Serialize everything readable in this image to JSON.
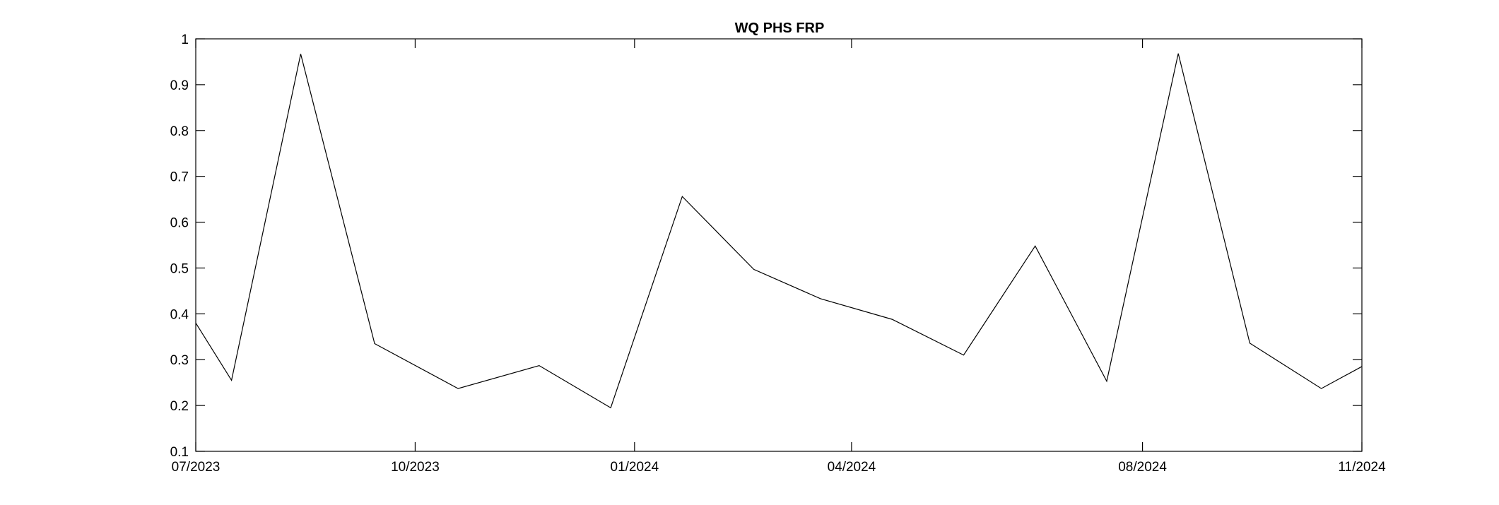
{
  "chart_data": {
    "type": "line",
    "title": "WQ PHS FRP",
    "xlabel": "",
    "ylabel": "",
    "x_axis": {
      "kind": "date",
      "range": [
        "2023-07",
        "2024-11"
      ],
      "ticks": [
        {
          "date": "2023-07",
          "label": "07/2023"
        },
        {
          "date": "2023-10",
          "label": "10/2023"
        },
        {
          "date": "2024-01",
          "label": "01/2024"
        },
        {
          "date": "2024-04",
          "label": "04/2024"
        },
        {
          "date": "2024-08",
          "label": "08/2024"
        },
        {
          "date": "2024-11",
          "label": "11/2024"
        }
      ]
    },
    "y_axis": {
      "range": [
        0.1,
        1
      ],
      "ticks": [
        {
          "value": 0.1,
          "label": "0.1"
        },
        {
          "value": 0.2,
          "label": "0.2"
        },
        {
          "value": 0.3,
          "label": "0.3"
        },
        {
          "value": 0.4,
          "label": "0.4"
        },
        {
          "value": 0.5,
          "label": "0.5"
        },
        {
          "value": 0.6,
          "label": "0.6"
        },
        {
          "value": 0.7,
          "label": "0.7"
        },
        {
          "value": 0.8,
          "label": "0.8"
        },
        {
          "value": 0.9,
          "label": "0.9"
        },
        {
          "value": 1,
          "label": "1"
        }
      ]
    },
    "grid": false,
    "legend": "none",
    "line_color": "#000000",
    "series": [
      {
        "points": [
          {
            "x": "2023-07-01",
            "y": 0.38
          },
          {
            "x": "2023-07-16",
            "y": 0.255
          },
          {
            "x": "2023-08-14",
            "y": 0.967
          },
          {
            "x": "2023-09-14",
            "y": 0.335
          },
          {
            "x": "2023-10-19",
            "y": 0.237
          },
          {
            "x": "2023-11-22",
            "y": 0.287
          },
          {
            "x": "2023-12-22",
            "y": 0.195
          },
          {
            "x": "2024-01-21",
            "y": 0.656
          },
          {
            "x": "2024-02-20",
            "y": 0.497
          },
          {
            "x": "2024-03-19",
            "y": 0.433
          },
          {
            "x": "2024-04-18",
            "y": 0.388
          },
          {
            "x": "2024-05-18",
            "y": 0.31
          },
          {
            "x": "2024-06-17",
            "y": 0.548
          },
          {
            "x": "2024-07-17",
            "y": 0.253
          },
          {
            "x": "2024-08-16",
            "y": 0.968
          },
          {
            "x": "2024-09-15",
            "y": 0.336
          },
          {
            "x": "2024-10-15",
            "y": 0.237
          },
          {
            "x": "2024-11-01",
            "y": 0.285
          }
        ]
      }
    ]
  }
}
